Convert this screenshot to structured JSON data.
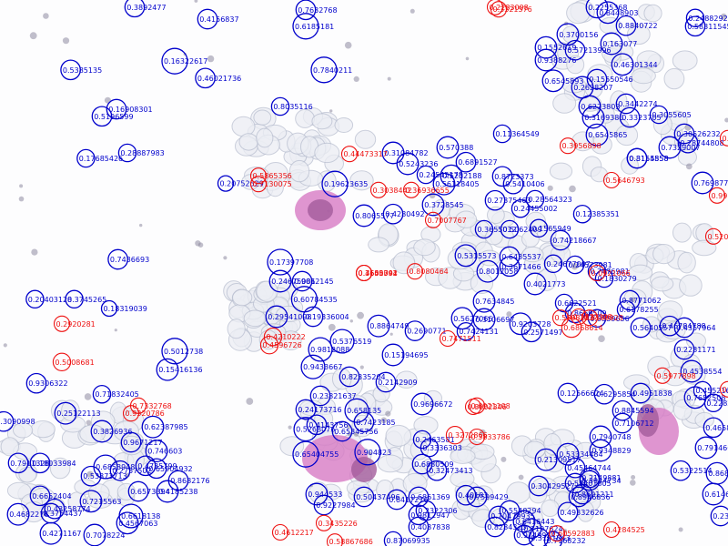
{
  "image": {
    "description_name": "microscopy-detection-overlay"
  },
  "colors": {
    "detection_primary": "#0000cc",
    "detection_secondary": "#ee1111",
    "cell_membrane": "#b9bfd0",
    "cell_fill": "#eceef4",
    "stain_dark": "#8e8aa0",
    "nucleus_purple": "#a25b9b",
    "nucleus_pink": "#d77bc4"
  },
  "detections": [
    {
      "label": "0.3892477",
      "cls": "primary",
      "r": 0.7
    },
    {
      "label": "0.4156837",
      "cls": "primary",
      "r": 0.7
    },
    {
      "label": "0.7632768",
      "cls": "primary",
      "r": 0.7
    },
    {
      "label": "0.6185181",
      "cls": "primary",
      "r": 1.0
    },
    {
      "label": "0.7840211",
      "cls": "primary",
      "r": 1.0
    },
    {
      "label": "0.16322617",
      "cls": "primary",
      "r": 1.0
    },
    {
      "label": "0.8035116",
      "cls": "primary",
      "r": 0.6
    },
    {
      "label": "0.16908301",
      "cls": "primary",
      "r": 0.7
    },
    {
      "label": "0.5196599",
      "cls": "primary",
      "r": 0.7
    },
    {
      "label": "0.17685426",
      "cls": "primary",
      "r": 0.6
    },
    {
      "label": "0.28887983",
      "cls": "primary",
      "r": 0.6
    },
    {
      "label": "0.20752529",
      "cls": "primary",
      "r": 0.5
    },
    {
      "label": "0.19623635",
      "cls": "primary",
      "r": 1.0
    },
    {
      "label": "0.31084782",
      "cls": "primary",
      "r": 0.8
    },
    {
      "label": "0.5243236",
      "cls": "primary",
      "r": 0.8
    },
    {
      "label": "0.570388",
      "cls": "primary",
      "r": 0.8
    },
    {
      "label": "0.6891527",
      "cls": "primary",
      "r": 0.7
    },
    {
      "label": "0.5232188",
      "cls": "primary",
      "r": 0.8
    },
    {
      "label": "0.56118405",
      "cls": "primary",
      "r": 0.8
    },
    {
      "label": "0.24545178",
      "cls": "primary",
      "r": 0.6
    },
    {
      "label": "0.3728545",
      "cls": "primary",
      "r": 0.8
    },
    {
      "label": "0.8065577",
      "cls": "primary",
      "r": 0.8
    },
    {
      "label": "0.4280492",
      "cls": "primary",
      "r": 0.7
    },
    {
      "label": "0.11364549",
      "cls": "primary",
      "r": 0.6
    },
    {
      "label": "0.8723373",
      "cls": "primary",
      "r": 0.7
    },
    {
      "label": "0.5410406",
      "cls": "primary",
      "r": 0.7
    },
    {
      "label": "0.27375463",
      "cls": "primary",
      "r": 0.7
    },
    {
      "label": "0.28564323",
      "cls": "primary",
      "r": 0.6
    },
    {
      "label": "0.24455002",
      "cls": "primary",
      "r": 0.6
    },
    {
      "label": "0.12385351",
      "cls": "primary",
      "r": 0.6
    },
    {
      "label": "0.3655012",
      "cls": "primary",
      "r": 0.6
    },
    {
      "label": "0.5062409",
      "cls": "primary",
      "r": 0.6
    },
    {
      "label": "0.1565949",
      "cls": "primary",
      "r": 0.6
    },
    {
      "label": "0.74218667",
      "cls": "primary",
      "r": 0.7
    },
    {
      "label": "0.5315573",
      "cls": "primary",
      "r": 0.8
    },
    {
      "label": "0.6435537",
      "cls": "primary",
      "r": 0.7
    },
    {
      "label": "0.8012058",
      "cls": "primary",
      "r": 0.8
    },
    {
      "label": "0.3671466",
      "cls": "primary",
      "r": 0.7
    },
    {
      "label": "0.24677007",
      "cls": "primary",
      "r": 0.6
    },
    {
      "label": "0.4021773",
      "cls": "primary",
      "r": 0.8
    },
    {
      "label": "0.24573981",
      "cls": "primary",
      "r": 0.6
    },
    {
      "label": "0.7476981",
      "cls": "primary",
      "r": 0.6
    },
    {
      "label": "0.1830279",
      "cls": "primary",
      "r": 0.6
    },
    {
      "label": "0.7634845",
      "cls": "primary",
      "r": 0.8
    },
    {
      "label": "0.5627066",
      "cls": "primary",
      "r": 0.8
    },
    {
      "label": "0.3106697",
      "cls": "primary",
      "r": 0.8
    },
    {
      "label": "0.7424131",
      "cls": "primary",
      "r": 0.6
    },
    {
      "label": "0.9203728",
      "cls": "primary",
      "r": 0.8
    },
    {
      "label": "0.2571497",
      "cls": "primary",
      "r": 0.7
    },
    {
      "label": "0.6622521",
      "cls": "primary",
      "r": 0.6
    },
    {
      "label": "0.8771062",
      "cls": "primary",
      "r": 0.7
    },
    {
      "label": "0.8669509",
      "cls": "primary",
      "r": 0.7
    },
    {
      "label": "0.9559656",
      "cls": "primary",
      "r": 0.6
    },
    {
      "label": "0.5640557",
      "cls": "primary",
      "r": 0.7
    },
    {
      "label": "0.6178255",
      "cls": "primary",
      "r": 0.6
    },
    {
      "label": "0.17397708",
      "cls": "primary",
      "r": 1.0
    },
    {
      "label": "0.24675081",
      "cls": "primary",
      "r": 0.8
    },
    {
      "label": "0.9062145",
      "cls": "primary",
      "r": 0.7
    },
    {
      "label": "0.60784535",
      "cls": "primary",
      "r": 1.0
    },
    {
      "label": "0.29541098",
      "cls": "primary",
      "r": 0.8
    },
    {
      "label": "0.19336004",
      "cls": "primary",
      "r": 0.7
    },
    {
      "label": "0.20403128",
      "cls": "primary",
      "r": 0.6
    },
    {
      "label": "0.3745265",
      "cls": "primary",
      "r": 0.6
    },
    {
      "label": "0.18319039",
      "cls": "primary",
      "r": 0.5
    },
    {
      "label": "0.7436693",
      "cls": "primary",
      "r": 0.7
    },
    {
      "label": "0.5012738",
      "cls": "primary",
      "r": 1.0
    },
    {
      "label": "0.15416136",
      "cls": "primary",
      "r": 0.8
    },
    {
      "label": "0.8864749",
      "cls": "primary",
      "r": 0.8
    },
    {
      "label": "0.2690771",
      "cls": "primary",
      "r": 0.7
    },
    {
      "label": "0.5376519",
      "cls": "primary",
      "r": 0.9
    },
    {
      "label": "0.9812088",
      "cls": "primary",
      "r": 0.9
    },
    {
      "label": "0.15194695",
      "cls": "primary",
      "r": 0.8
    },
    {
      "label": "0.9433667",
      "cls": "primary",
      "r": 0.9
    },
    {
      "label": "0.82335204",
      "cls": "primary",
      "r": 0.7
    },
    {
      "label": "0.2142909",
      "cls": "primary",
      "r": 0.7
    },
    {
      "label": "0.23821637",
      "cls": "primary",
      "r": 0.7
    },
    {
      "label": "0.9696672",
      "cls": "primary",
      "r": 0.8
    },
    {
      "label": "0.24173716",
      "cls": "primary",
      "r": 0.7
    },
    {
      "label": "0.658135",
      "cls": "primary",
      "r": 0.9
    },
    {
      "label": "0.4143756",
      "cls": "primary",
      "r": 0.7
    },
    {
      "label": "0.7423185",
      "cls": "primary",
      "r": 0.7
    },
    {
      "label": "0.5268076",
      "cls": "primary",
      "r": 0.9
    },
    {
      "label": "0.65345756",
      "cls": "primary",
      "r": 0.7
    },
    {
      "label": "0.65404755",
      "cls": "primary",
      "r": 1.0
    },
    {
      "label": "0.904823",
      "cls": "primary",
      "r": 1.0
    },
    {
      "label": "0.2463581",
      "cls": "primary",
      "r": 0.6
    },
    {
      "label": "0.3336303",
      "cls": "primary",
      "r": 0.6
    },
    {
      "label": "0.6880509",
      "cls": "primary",
      "r": 0.7
    },
    {
      "label": "0.32473413",
      "cls": "primary",
      "r": 0.7
    },
    {
      "label": "0.944533",
      "cls": "primary",
      "r": 0.8
    },
    {
      "label": "0.9227984",
      "cls": "primary",
      "r": 0.7
    },
    {
      "label": "0.50437496",
      "cls": "primary",
      "r": 0.7
    },
    {
      "label": "0.6417276",
      "cls": "primary",
      "r": 0.7
    },
    {
      "label": "0.6861369",
      "cls": "primary",
      "r": 0.7
    },
    {
      "label": "0.40183",
      "cls": "primary",
      "r": 0.7
    },
    {
      "label": "0.7599429",
      "cls": "primary",
      "r": 0.7
    },
    {
      "label": "0.2322306",
      "cls": "primary",
      "r": 0.7
    },
    {
      "label": "0.9812947",
      "cls": "primary",
      "r": 0.7
    },
    {
      "label": "0.5540294",
      "cls": "primary",
      "r": 0.7
    },
    {
      "label": "0.70479935",
      "cls": "primary",
      "r": 0.7
    },
    {
      "label": "0.4087838",
      "cls": "primary",
      "r": 0.7
    },
    {
      "label": "0.87069935",
      "cls": "primary",
      "r": 0.6
    },
    {
      "label": "0.8284323",
      "cls": "primary",
      "r": 0.7
    },
    {
      "label": "0.97499247",
      "cls": "primary",
      "r": 0.7
    },
    {
      "label": "0.7168232",
      "cls": "primary",
      "r": 0.6
    },
    {
      "label": "0.2255368",
      "cls": "primary",
      "r": 0.8
    },
    {
      "label": "0.8448903",
      "cls": "primary",
      "r": 0.8
    },
    {
      "label": "0.8840722",
      "cls": "primary",
      "r": 0.7
    },
    {
      "label": "0.3700156",
      "cls": "primary",
      "r": 0.8
    },
    {
      "label": "0.1552619",
      "cls": "primary",
      "r": 0.8
    },
    {
      "label": "0.57213996",
      "cls": "primary",
      "r": 0.7
    },
    {
      "label": "0.163077",
      "cls": "primary",
      "r": 0.8
    },
    {
      "label": "0.9388276",
      "cls": "primary",
      "r": 0.8
    },
    {
      "label": "0.46301344",
      "cls": "primary",
      "r": 0.8
    },
    {
      "label": "0.6545893",
      "cls": "primary",
      "r": 0.8
    },
    {
      "label": "0.2628207",
      "cls": "primary",
      "r": 0.8
    },
    {
      "label": "0.15550546",
      "cls": "primary",
      "r": 0.7
    },
    {
      "label": "0.2488292",
      "cls": "primary",
      "r": 0.6
    },
    {
      "label": "0.58311545",
      "cls": "primary",
      "r": 0.7
    },
    {
      "label": "0.6273803",
      "cls": "primary",
      "r": 0.8
    },
    {
      "label": "0.3442274",
      "cls": "primary",
      "r": 0.7
    },
    {
      "label": "0.3169385",
      "cls": "primary",
      "r": 0.8
    },
    {
      "label": "0.3323705",
      "cls": "primary",
      "r": 0.7
    },
    {
      "label": "0.3055605",
      "cls": "primary",
      "r": 0.6
    },
    {
      "label": "0.6545865",
      "cls": "primary",
      "r": 0.8
    },
    {
      "label": "0.30526232",
      "cls": "primary",
      "r": 0.7
    },
    {
      "label": "0.28744808",
      "cls": "primary",
      "r": 0.7
    },
    {
      "label": "0.7329007",
      "cls": "primary",
      "r": 0.8
    },
    {
      "label": "0.8154858",
      "cls": "primary",
      "r": 0.7
    },
    {
      "label": "0.3155558",
      "cls": "primary",
      "r": 0.7
    },
    {
      "label": "0.7698773",
      "cls": "primary",
      "r": 0.8
    },
    {
      "label": "0.46784788",
      "cls": "primary",
      "r": 0.7
    },
    {
      "label": "0.4357964",
      "cls": "primary",
      "r": 0.7
    },
    {
      "label": "0.2281171",
      "cls": "primary",
      "r": 0.7
    },
    {
      "label": "0.4538554",
      "cls": "primary",
      "r": 0.8
    },
    {
      "label": "0.4552164",
      "cls": "primary",
      "r": 0.6
    },
    {
      "label": "0.22820234",
      "cls": "primary",
      "r": 0.6
    },
    {
      "label": "0.7652508",
      "cls": "primary",
      "r": 0.8
    },
    {
      "label": "0.4658822",
      "cls": "primary",
      "r": 0.7
    },
    {
      "label": "0.8689968",
      "cls": "primary",
      "r": 0.8
    },
    {
      "label": "0.79146606",
      "cls": "primary",
      "r": 0.8
    },
    {
      "label": "0.6146457",
      "cls": "primary",
      "r": 0.8
    },
    {
      "label": "0.23037297",
      "cls": "primary",
      "r": 0.7
    },
    {
      "label": "0.5322514",
      "cls": "primary",
      "r": 0.7
    },
    {
      "label": "0.12566624",
      "cls": "primary",
      "r": 0.7
    },
    {
      "label": "0.6295854",
      "cls": "primary",
      "r": 0.7
    },
    {
      "label": "0.4951838",
      "cls": "primary",
      "r": 0.7
    },
    {
      "label": "0.8845594",
      "cls": "primary",
      "r": 0.7
    },
    {
      "label": "0.7106712",
      "cls": "primary",
      "r": 0.7
    },
    {
      "label": "0.7940748",
      "cls": "primary",
      "r": 0.8
    },
    {
      "label": "0.9348829",
      "cls": "primary",
      "r": 0.8
    },
    {
      "label": "0.53334484",
      "cls": "primary",
      "r": 0.8
    },
    {
      "label": "0.21309517",
      "cls": "primary",
      "r": 0.8
    },
    {
      "label": "0.45464744",
      "cls": "primary",
      "r": 0.7
    },
    {
      "label": "0.2149881",
      "cls": "primary",
      "r": 0.7
    },
    {
      "label": "0.3944734",
      "cls": "primary",
      "r": 0.7
    },
    {
      "label": "0.30429527",
      "cls": "primary",
      "r": 0.7
    },
    {
      "label": "0.53401805",
      "cls": "primary",
      "r": 0.7
    },
    {
      "label": "0.8601211",
      "cls": "primary",
      "r": 0.7
    },
    {
      "label": "0.8946836",
      "cls": "primary",
      "r": 0.7
    },
    {
      "label": "0.49332626",
      "cls": "primary",
      "r": 0.7
    },
    {
      "label": "0.6416443",
      "cls": "primary",
      "r": 0.8
    },
    {
      "label": "0.7197624",
      "cls": "primary",
      "r": 0.7
    },
    {
      "label": "0.3191843",
      "cls": "primary",
      "r": 0.7
    },
    {
      "label": "0.9306322",
      "cls": "primary",
      "r": 0.7
    },
    {
      "label": "0.71832405",
      "cls": "primary",
      "r": 0.6
    },
    {
      "label": "0.25122113",
      "cls": "primary",
      "r": 0.8
    },
    {
      "label": "0.3090998",
      "cls": "primary",
      "r": 0.7
    },
    {
      "label": "0.62387985",
      "cls": "primary",
      "r": 0.8
    },
    {
      "label": "0.3826936",
      "cls": "primary",
      "r": 0.8
    },
    {
      "label": "0.9671217",
      "cls": "primary",
      "r": 0.7
    },
    {
      "label": "0.746603",
      "cls": "primary",
      "r": 0.8
    },
    {
      "label": "0.4735799",
      "cls": "primary",
      "r": 0.7
    },
    {
      "label": "0.8682176",
      "cls": "primary",
      "r": 0.7
    },
    {
      "label": "0.7911328",
      "cls": "primary",
      "r": 0.7
    },
    {
      "label": "0.18033984",
      "cls": "primary",
      "r": 0.7
    },
    {
      "label": "0.6853948",
      "cls": "primary",
      "r": 0.9
    },
    {
      "label": "0.65904932",
      "cls": "primary",
      "r": 0.7
    },
    {
      "label": "0.2757502",
      "cls": "primary",
      "r": 0.7
    },
    {
      "label": "0.53373713",
      "cls": "primary",
      "r": 0.7
    },
    {
      "label": "0.4185238",
      "cls": "primary",
      "r": 0.8
    },
    {
      "label": "0.6652404",
      "cls": "primary",
      "r": 0.7
    },
    {
      "label": "0.43258774",
      "cls": "primary",
      "r": 0.7
    },
    {
      "label": "0.7215563",
      "cls": "primary",
      "r": 0.8
    },
    {
      "label": "0.6573394",
      "cls": "primary",
      "r": 0.7
    },
    {
      "label": "0.4682276",
      "cls": "primary",
      "r": 0.8
    },
    {
      "label": "0.3754437",
      "cls": "primary",
      "r": 0.7
    },
    {
      "label": "0.6618138",
      "cls": "primary",
      "r": 0.9
    },
    {
      "label": "0.4271167",
      "cls": "primary",
      "r": 0.8
    },
    {
      "label": "0.7078224",
      "cls": "primary",
      "r": 0.8
    },
    {
      "label": "0.4567063",
      "cls": "primary",
      "r": 0.8
    },
    {
      "label": "0.5385135",
      "cls": "primary",
      "r": 0.7
    },
    {
      "label": "0.46021736",
      "cls": "primary",
      "r": 0.7
    },
    {
      "label": "0.3321576",
      "cls": "secondary",
      "r": 0.5
    },
    {
      "label": "0.5865356",
      "cls": "secondary",
      "r": 0.5
    },
    {
      "label": "0.7130075",
      "cls": "secondary",
      "r": 0.5
    },
    {
      "label": "0.44473317",
      "cls": "secondary",
      "r": 0.5
    },
    {
      "label": "0.3038442",
      "cls": "secondary",
      "r": 0.5
    },
    {
      "label": "0.36936655",
      "cls": "secondary",
      "r": 0.5
    },
    {
      "label": "0.3956898",
      "cls": "secondary",
      "r": 0.5
    },
    {
      "label": "0.5646793",
      "cls": "secondary",
      "r": 0.5
    },
    {
      "label": "0.7007767",
      "cls": "secondary",
      "r": 0.5
    },
    {
      "label": "0.8080464",
      "cls": "secondary",
      "r": 0.5
    },
    {
      "label": "0.0921066",
      "cls": "secondary",
      "r": 0.5
    },
    {
      "label": "0.3777398",
      "cls": "secondary",
      "r": 0.5
    },
    {
      "label": "0.5808283",
      "cls": "secondary",
      "r": 0.5
    },
    {
      "label": "0.2920281",
      "cls": "secondary",
      "r": 0.5
    },
    {
      "label": "0.4210222",
      "cls": "secondary",
      "r": 0.6
    },
    {
      "label": "0.4596726",
      "cls": "secondary",
      "r": 0.6
    },
    {
      "label": "0.5008681",
      "cls": "secondary",
      "r": 0.6
    },
    {
      "label": "0.7471511",
      "cls": "secondary",
      "r": 0.5
    },
    {
      "label": "0.8599928",
      "cls": "secondary",
      "r": 0.5
    },
    {
      "label": "0.6868614",
      "cls": "secondary",
      "r": 0.7
    },
    {
      "label": "0.5977898",
      "cls": "secondary",
      "r": 0.5
    },
    {
      "label": "0.6921108",
      "cls": "secondary",
      "r": 0.5
    },
    {
      "label": "0.8002346",
      "cls": "secondary",
      "r": 0.5
    },
    {
      "label": "0.7332768",
      "cls": "secondary",
      "r": 0.5
    },
    {
      "label": "0.9320786",
      "cls": "secondary",
      "r": 0.5
    },
    {
      "label": "0.3272866",
      "cls": "secondary",
      "r": 0.6
    },
    {
      "label": "0.3833786",
      "cls": "secondary",
      "r": 0.5
    },
    {
      "label": "0.4612217",
      "cls": "secondary",
      "r": 0.5
    },
    {
      "label": "0.3435226",
      "cls": "secondary",
      "r": 0.5
    },
    {
      "label": "0.58867686",
      "cls": "secondary",
      "r": 0.5
    },
    {
      "label": "0.60592883",
      "cls": "secondary",
      "r": 0.5
    },
    {
      "label": "0.4284525",
      "cls": "secondary",
      "r": 0.5
    },
    {
      "label": "0.2283098",
      "cls": "secondary",
      "r": 0.5
    },
    {
      "label": "0.4587536",
      "cls": "secondary",
      "r": 0.5
    },
    {
      "label": "0.9914685",
      "cls": "secondary",
      "r": 0.5
    },
    {
      "label": "0.5200275",
      "cls": "secondary",
      "r": 0.5
    },
    {
      "label": "0.1882024",
      "cls": "secondary",
      "r": 0.5
    },
    {
      "label": "0.4601342",
      "cls": "secondary",
      "r": 0.5
    },
    {
      "label": "0.3540094",
      "cls": "secondary",
      "r": 0.5
    },
    {
      "label": "0.7655791",
      "cls": "secondary",
      "r": 0.5
    }
  ]
}
